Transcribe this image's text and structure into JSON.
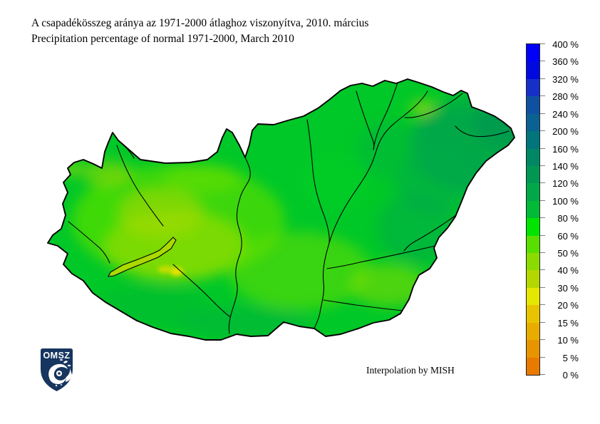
{
  "page": {
    "background": "#FFFFFF"
  },
  "title": {
    "line1_hu": "A csapadékösszeg aránya az 1971-2000 átlaghoz viszonyítva, 2010. március",
    "line2_en": "Precipitation percentage of normal 1971-2000, March 2010"
  },
  "map": {
    "region": "Hungary",
    "credit": "Interpolation by MISH"
  },
  "logo": {
    "text": "OMSZ",
    "shield_color": "#16355F"
  },
  "legend": {
    "unit": "%",
    "labels": [
      "400 %",
      "360 %",
      "320 %",
      "280 %",
      "240 %",
      "200 %",
      "160 %",
      "140 %",
      "120 %",
      "100 %",
      "80 %",
      "60 %",
      "50 %",
      "40 %",
      "30 %",
      "20 %",
      "15 %",
      "10 %",
      "5 %",
      "0 %"
    ],
    "values_percent": [
      400,
      360,
      320,
      280,
      240,
      200,
      160,
      140,
      120,
      100,
      80,
      60,
      50,
      40,
      30,
      20,
      15,
      10,
      5,
      0
    ],
    "segment_colors_top_to_bottom": [
      "#0000FA",
      "#000AE0",
      "#1430C8",
      "#1050A0",
      "#0A6292",
      "#00757B",
      "#008763",
      "#009753",
      "#00A847",
      "#00BA38",
      "#00E400",
      "#58DF00",
      "#8CDB00",
      "#B4D700",
      "#E6E700",
      "#E8C400",
      "#E8AC00",
      "#E89400",
      "#E87A00"
    ]
  },
  "chart_data": {
    "type": "heatmap",
    "title": "Precipitation percentage of normal 1971-2000, March 2010",
    "title_hu": "A csapadékösszeg aránya az 1971-2000 átlaghoz viszonyítva, 2010. március",
    "region": "Hungary",
    "legend_boundaries_percent": [
      0,
      5,
      10,
      15,
      20,
      30,
      40,
      50,
      60,
      80,
      100,
      120,
      140,
      160,
      200,
      240,
      280,
      320,
      360,
      400
    ],
    "legend_colors_low_to_high": [
      "#E87A00",
      "#E89400",
      "#E8AC00",
      "#E8C400",
      "#E6E700",
      "#B4D700",
      "#8CDB00",
      "#58DF00",
      "#00E400",
      "#00BA38",
      "#00A847",
      "#009753",
      "#008763",
      "#00757B",
      "#0A6292",
      "#1050A0",
      "#1430C8",
      "#000AE0",
      "#0000FA"
    ],
    "map_value_summary": {
      "west_central": "30-60 % of normal (driest zone, yellow-green; small 20-30 % spots southeast of Lake Balaton)",
      "central_danube_tisza": "60-80 % of normal",
      "east_northeast": "100-160 % of normal (wettest zone, dark green)",
      "overall": "most of the country between 60 and 120 % of the 1971-2000 normal"
    },
    "annotations": [
      "Interpolation by MISH"
    ],
    "legend_position": "right"
  }
}
